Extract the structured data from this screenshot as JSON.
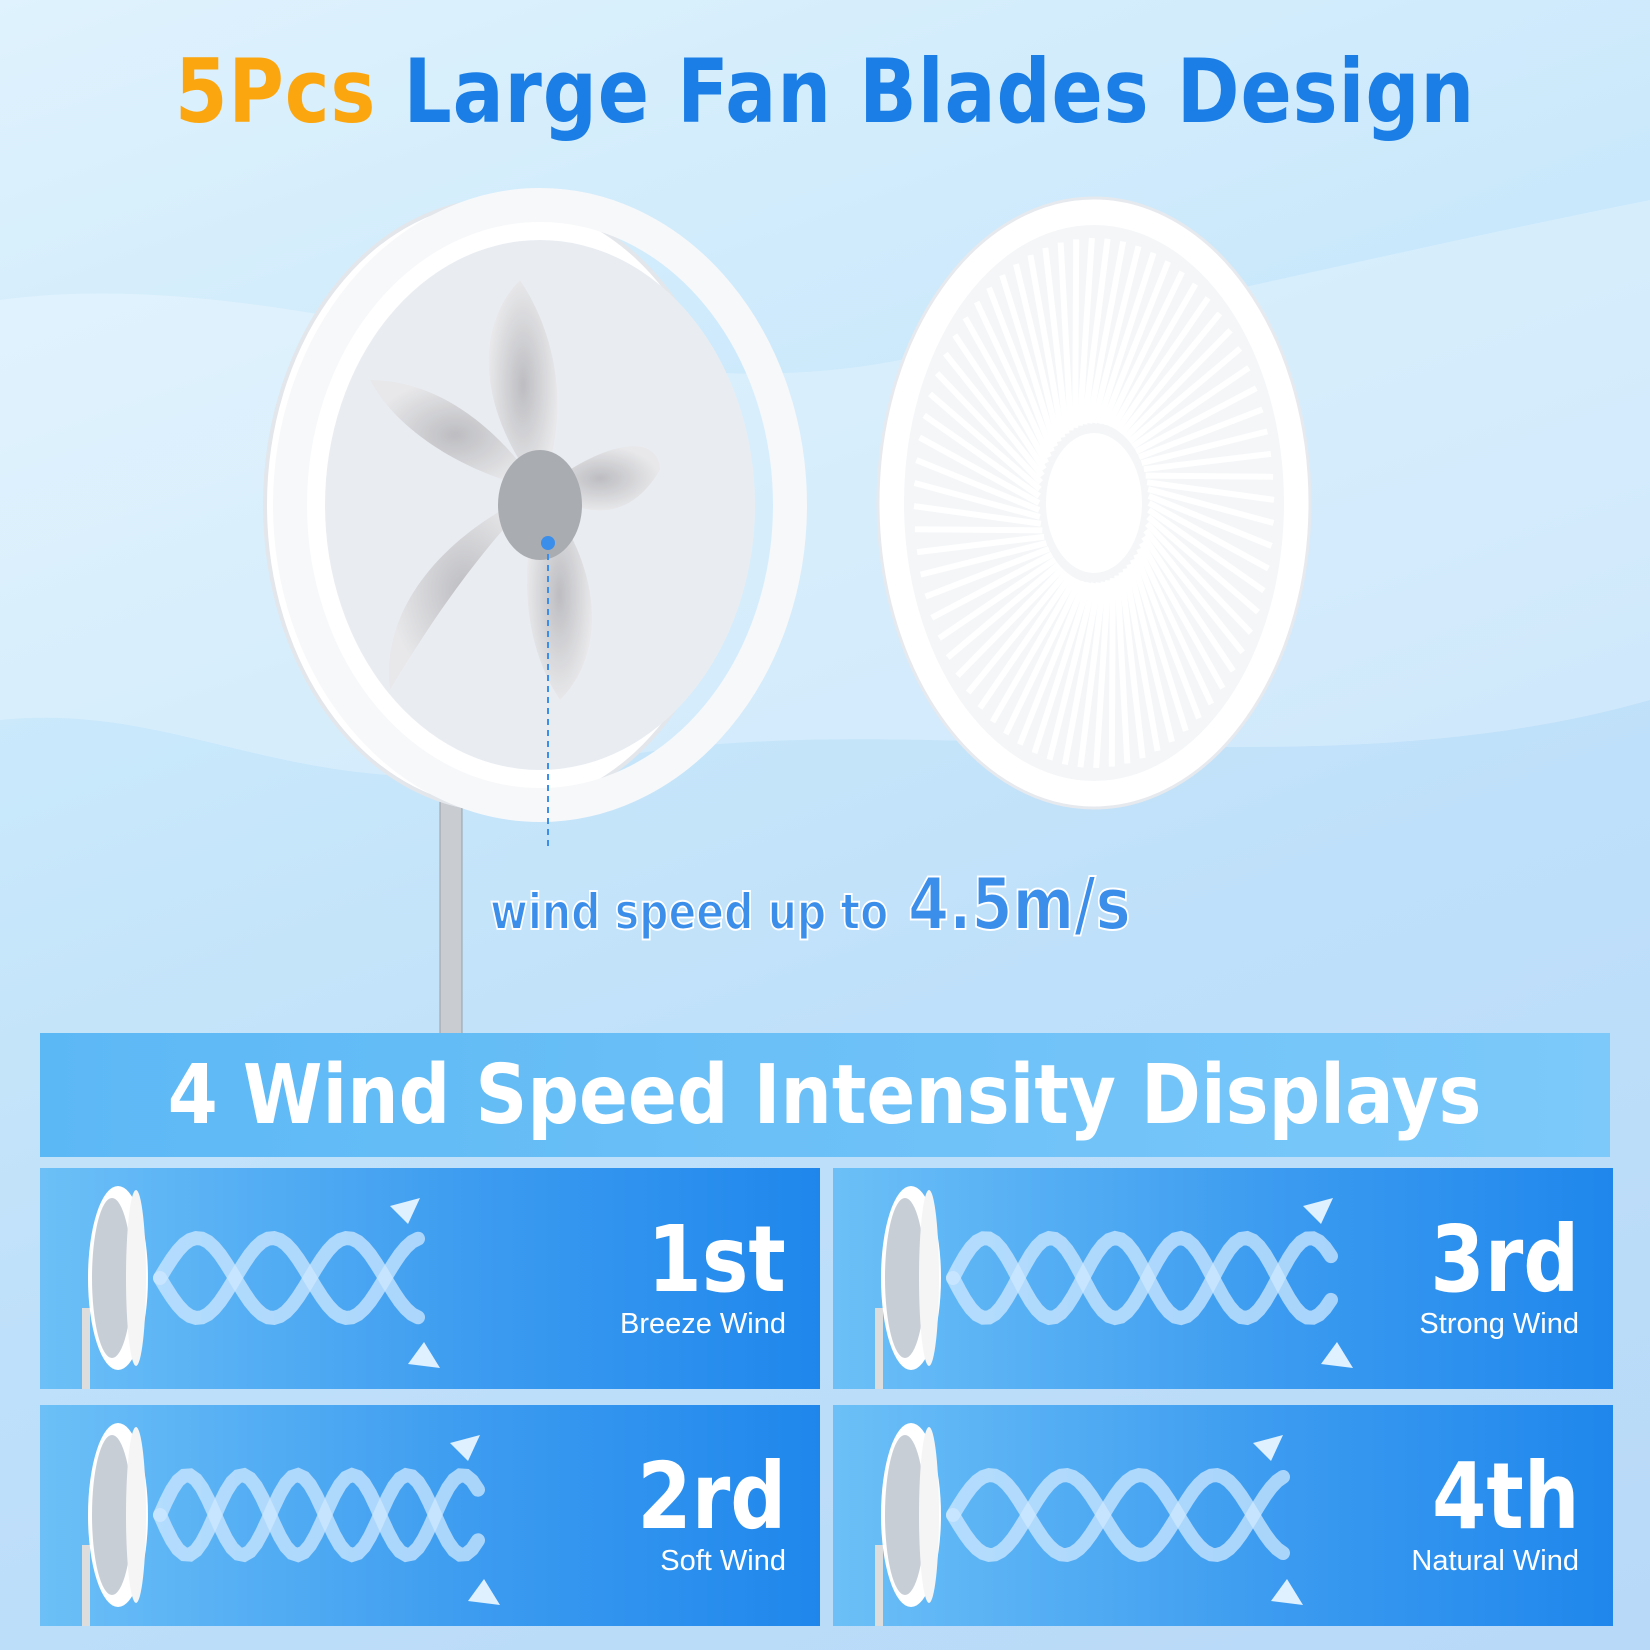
{
  "title": {
    "highlight": "5Pcs",
    "rest": "Large Fan Blades Design"
  },
  "wind_speed": {
    "label": "wind speed up to",
    "value": "4.5m/s"
  },
  "banner": "4 Wind Speed Intensity Displays",
  "modes": [
    {
      "level": "1st",
      "name": "Breeze Wind"
    },
    {
      "level": "3rd",
      "name": "Strong Wind"
    },
    {
      "level": "2rd",
      "name": "Soft Wind"
    },
    {
      "level": "4th",
      "name": "Natural Wind"
    }
  ],
  "colors": {
    "orange": "#fca60f",
    "blue": "#1a7ee6",
    "card": "#3d9cf0"
  }
}
